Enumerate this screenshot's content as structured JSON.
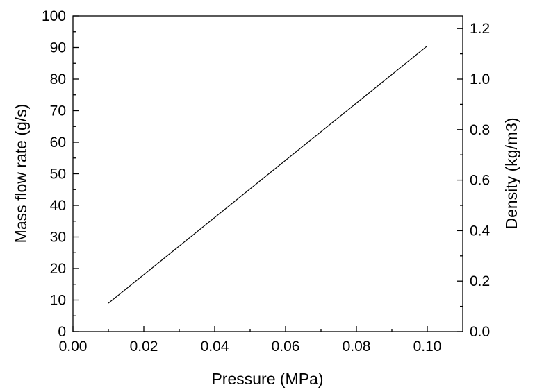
{
  "chart_data": {
    "type": "line",
    "xlabel": "Pressure (MPa)",
    "ylabel": "Mass flow rate (g/s)",
    "y2label": "Density (kg/m3)",
    "xlim": [
      0.0,
      0.11
    ],
    "ylim": [
      0,
      100
    ],
    "y2lim": [
      0.0,
      1.25
    ],
    "x_ticks": [
      "0.00",
      "0.02",
      "0.04",
      "0.06",
      "0.08",
      "0.10"
    ],
    "y_ticks": [
      "0",
      "10",
      "20",
      "30",
      "40",
      "50",
      "60",
      "70",
      "80",
      "90",
      "100"
    ],
    "y2_ticks": [
      "0.0",
      "0.2",
      "0.4",
      "0.6",
      "0.8",
      "1.0",
      "1.2"
    ],
    "grid": false,
    "series": [
      {
        "x": [
          0.01,
          0.1
        ],
        "y": [
          9.0,
          90.5
        ],
        "color": "#000000"
      }
    ]
  }
}
